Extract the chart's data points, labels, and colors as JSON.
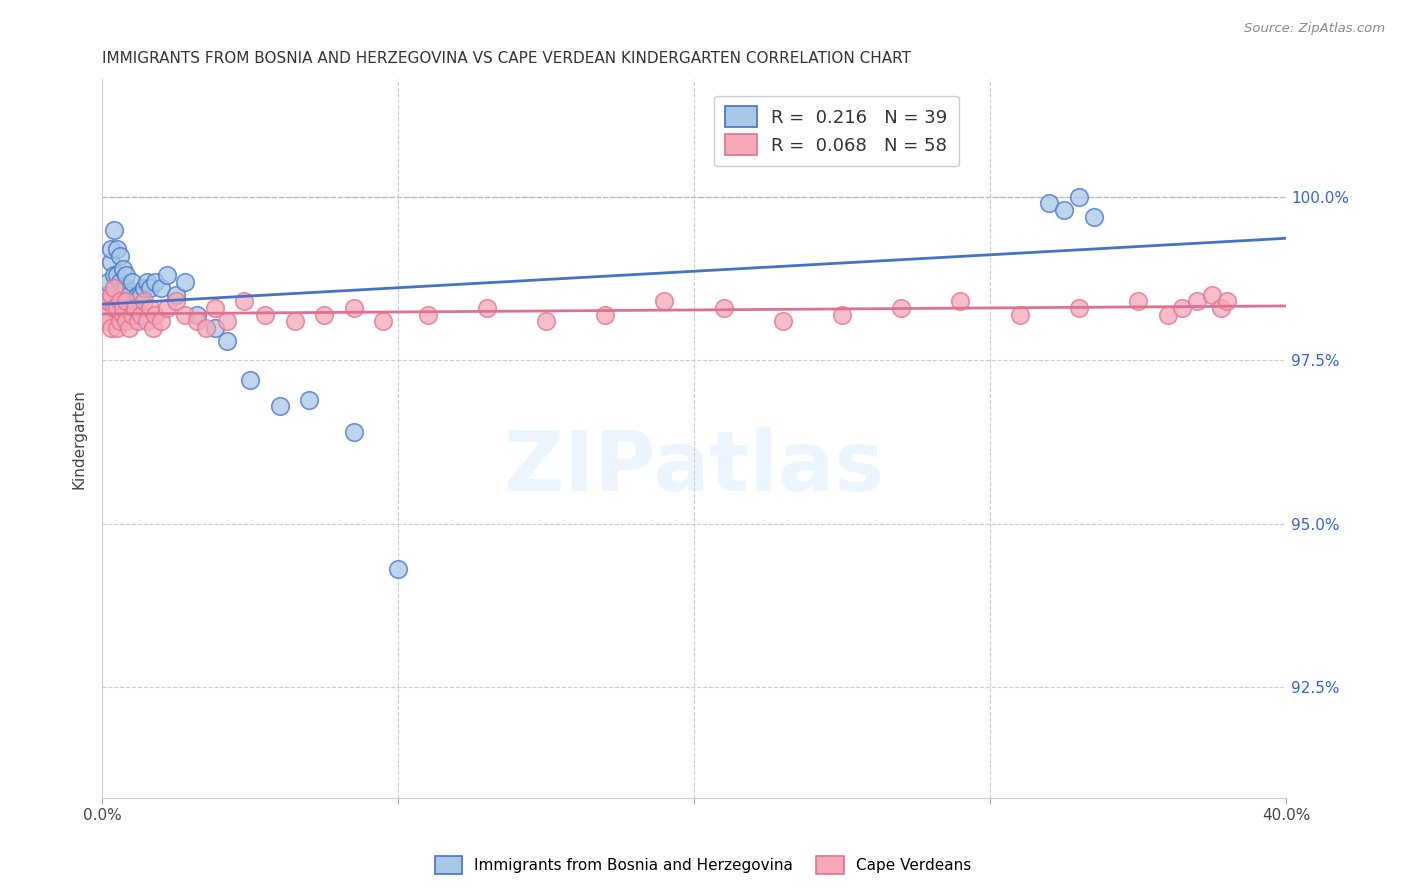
{
  "title": "IMMIGRANTS FROM BOSNIA AND HERZEGOVINA VS CAPE VERDEAN KINDERGARTEN CORRELATION CHART",
  "source": "Source: ZipAtlas.com",
  "ylabel": "Kindergarten",
  "blue_color": "#a8c8e8",
  "pink_color": "#f4a8b8",
  "line_blue": "#4472c4",
  "line_pink": "#e07090",
  "background_color": "#ffffff",
  "grid_color": "#cccccc",
  "xlim": [
    0.0,
    0.4
  ],
  "ylim": [
    0.908,
    1.018
  ],
  "yticks": [
    0.925,
    0.95,
    0.975,
    1.0
  ],
  "ytick_labels": [
    "92.5%",
    "95.0%",
    "97.5%",
    "100.0%"
  ],
  "xticks": [
    0.0,
    0.1,
    0.2,
    0.3,
    0.4
  ],
  "xtick_labels_show": [
    "0.0%",
    "",
    "",
    "",
    "40.0%"
  ],
  "legend_label1": "R =  0.216   N = 39",
  "legend_label2": "R =  0.068   N = 58",
  "bottom_legend1": "Immigrants from Bosnia and Herzegovina",
  "bottom_legend2": "Cape Verdeans",
  "watermark": "ZIPatlas",
  "blue_x": [
    0.001,
    0.002,
    0.003,
    0.003,
    0.004,
    0.004,
    0.005,
    0.005,
    0.006,
    0.006,
    0.007,
    0.007,
    0.008,
    0.008,
    0.009,
    0.01,
    0.011,
    0.012,
    0.013,
    0.014,
    0.015,
    0.016,
    0.018,
    0.02,
    0.022,
    0.025,
    0.028,
    0.032,
    0.038,
    0.042,
    0.05,
    0.06,
    0.07,
    0.085,
    0.1,
    0.32,
    0.325,
    0.33,
    0.335
  ],
  "blue_y": [
    0.985,
    0.987,
    0.99,
    0.992,
    0.988,
    0.995,
    0.988,
    0.992,
    0.987,
    0.991,
    0.986,
    0.989,
    0.986,
    0.988,
    0.985,
    0.987,
    0.984,
    0.985,
    0.985,
    0.986,
    0.987,
    0.986,
    0.987,
    0.986,
    0.988,
    0.985,
    0.987,
    0.982,
    0.98,
    0.978,
    0.972,
    0.968,
    0.969,
    0.964,
    0.943,
    0.999,
    0.998,
    1.0,
    0.997
  ],
  "pink_x": [
    0.001,
    0.002,
    0.002,
    0.003,
    0.003,
    0.004,
    0.004,
    0.005,
    0.005,
    0.006,
    0.006,
    0.007,
    0.007,
    0.008,
    0.008,
    0.009,
    0.01,
    0.011,
    0.012,
    0.013,
    0.014,
    0.015,
    0.016,
    0.017,
    0.018,
    0.02,
    0.022,
    0.025,
    0.028,
    0.032,
    0.035,
    0.038,
    0.042,
    0.048,
    0.055,
    0.065,
    0.075,
    0.085,
    0.095,
    0.11,
    0.13,
    0.15,
    0.17,
    0.19,
    0.21,
    0.23,
    0.25,
    0.27,
    0.29,
    0.31,
    0.33,
    0.35,
    0.36,
    0.365,
    0.37,
    0.375,
    0.378,
    0.38
  ],
  "pink_y": [
    0.982,
    0.981,
    0.984,
    0.985,
    0.98,
    0.983,
    0.986,
    0.983,
    0.98,
    0.981,
    0.984,
    0.982,
    0.983,
    0.981,
    0.984,
    0.98,
    0.982,
    0.983,
    0.981,
    0.982,
    0.984,
    0.981,
    0.983,
    0.98,
    0.982,
    0.981,
    0.983,
    0.984,
    0.982,
    0.981,
    0.98,
    0.983,
    0.981,
    0.984,
    0.982,
    0.981,
    0.982,
    0.983,
    0.981,
    0.982,
    0.983,
    0.981,
    0.982,
    0.984,
    0.983,
    0.981,
    0.982,
    0.983,
    0.984,
    0.982,
    0.983,
    0.984,
    0.982,
    0.983,
    0.984,
    0.985,
    0.983,
    0.984
  ]
}
